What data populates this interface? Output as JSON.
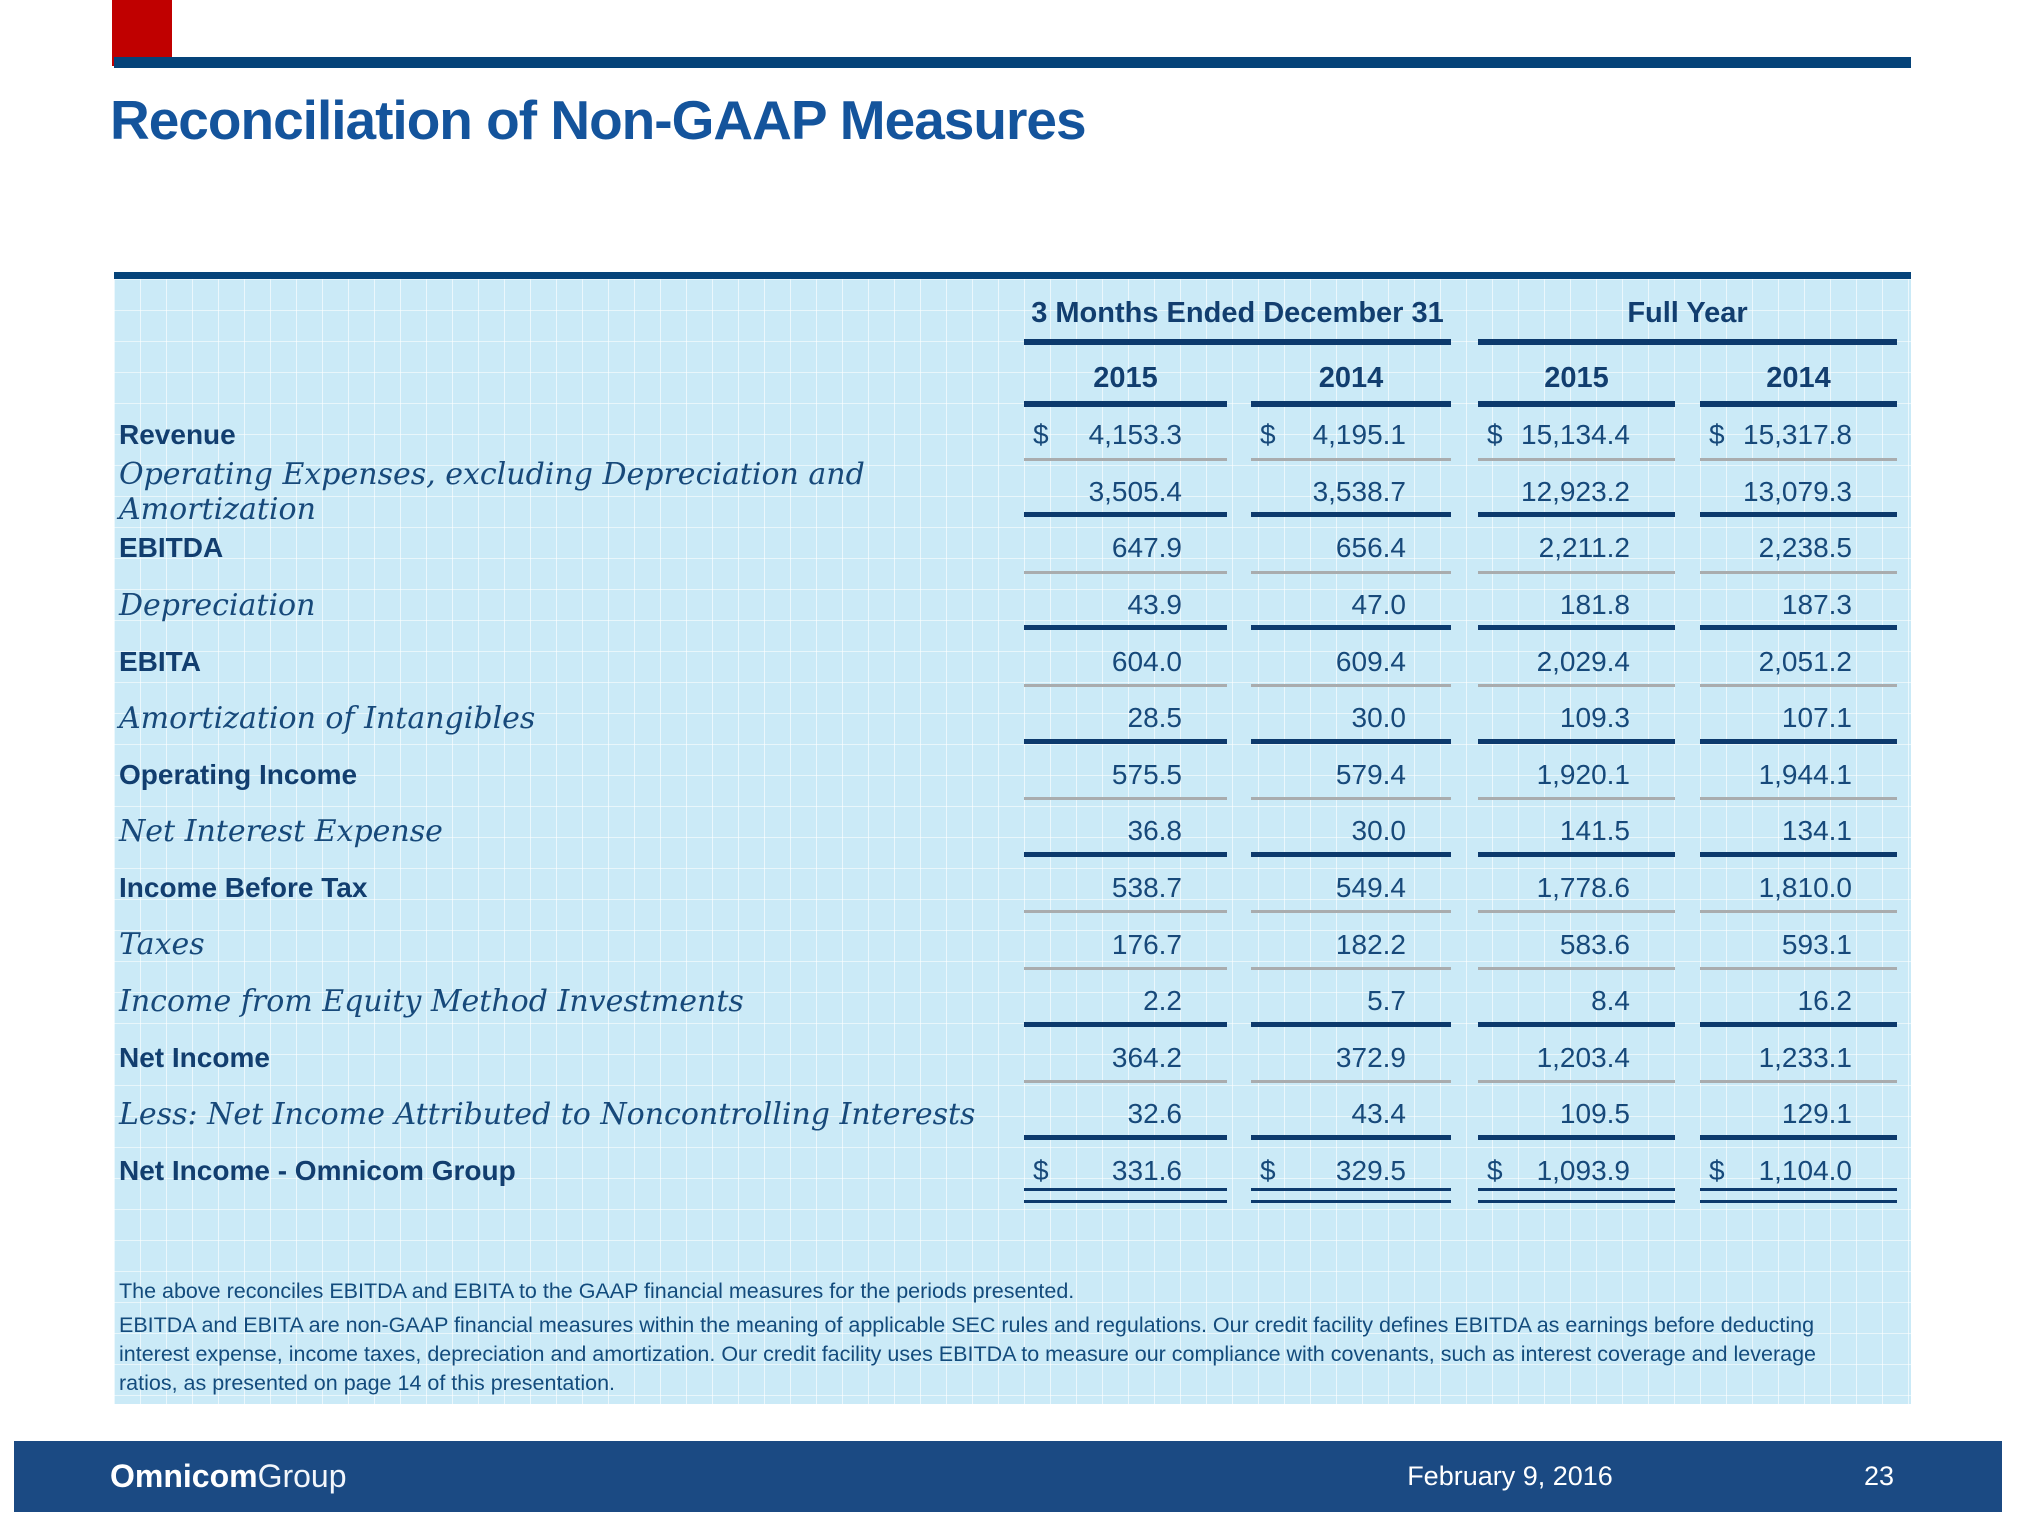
{
  "slide": {
    "title": "Reconciliation of Non-GAAP Measures",
    "accent_color": "#C00000",
    "rule_color": "#054379",
    "title_color": "#14549C",
    "table_bg_color": "#CBEAF7",
    "navy_line_color": "#0D3A6D",
    "gray_line_color": "#A9ACAE"
  },
  "table": {
    "col_groups": [
      {
        "label": "3 Months Ended December 31",
        "years": [
          "2015",
          "2014"
        ]
      },
      {
        "label": "Full Year",
        "years": [
          "2015",
          "2014"
        ]
      }
    ],
    "rows": [
      {
        "label": "Revenue",
        "style": "bold",
        "dollar": true,
        "values": [
          "4,153.3",
          "4,195.1",
          "15,134.4",
          "15,317.8"
        ],
        "sep": "gray"
      },
      {
        "label": "Operating Expenses, excluding Depreciation and Amortization",
        "style": "italic",
        "dollar": false,
        "values": [
          "3,505.4",
          "3,538.7",
          "12,923.2",
          "13,079.3"
        ],
        "sep": "navy"
      },
      {
        "label": "EBITDA",
        "style": "bold",
        "dollar": false,
        "values": [
          "647.9",
          "656.4",
          "2,211.2",
          "2,238.5"
        ],
        "sep": "gray"
      },
      {
        "label": "Depreciation",
        "style": "italic",
        "dollar": false,
        "values": [
          "43.9",
          "47.0",
          "181.8",
          "187.3"
        ],
        "sep": "navy"
      },
      {
        "label": "EBITA",
        "style": "bold",
        "dollar": false,
        "values": [
          "604.0",
          "609.4",
          "2,029.4",
          "2,051.2"
        ],
        "sep": "gray"
      },
      {
        "label": "Amortization of Intangibles",
        "style": "italic",
        "dollar": false,
        "values": [
          "28.5",
          "30.0",
          "109.3",
          "107.1"
        ],
        "sep": "navy"
      },
      {
        "label": "Operating Income",
        "style": "bold",
        "dollar": false,
        "values": [
          "575.5",
          "579.4",
          "1,920.1",
          "1,944.1"
        ],
        "sep": "gray"
      },
      {
        "label": "Net Interest Expense",
        "style": "italic",
        "dollar": false,
        "values": [
          "36.8",
          "30.0",
          "141.5",
          "134.1"
        ],
        "sep": "navy"
      },
      {
        "label": "Income Before Tax",
        "style": "bold",
        "dollar": false,
        "values": [
          "538.7",
          "549.4",
          "1,778.6",
          "1,810.0"
        ],
        "sep": "gray"
      },
      {
        "label": "Taxes",
        "style": "italic",
        "dollar": false,
        "values": [
          "176.7",
          "182.2",
          "583.6",
          "593.1"
        ],
        "sep": "gray"
      },
      {
        "label": "Income from Equity Method Investments",
        "style": "italic",
        "dollar": false,
        "values": [
          "2.2",
          "5.7",
          "8.4",
          "16.2"
        ],
        "sep": "navy"
      },
      {
        "label": "Net Income",
        "style": "bold",
        "dollar": false,
        "values": [
          "364.2",
          "372.9",
          "1,203.4",
          "1,233.1"
        ],
        "sep": "gray"
      },
      {
        "label": "Less: Net Income Attributed to Noncontrolling Interests",
        "style": "italic",
        "dollar": false,
        "values": [
          "32.6",
          "43.4",
          "109.5",
          "129.1"
        ],
        "sep": "navy"
      },
      {
        "label": "Net Income - Omnicom Group",
        "style": "bold",
        "dollar": true,
        "values": [
          "331.6",
          "329.5",
          "1,093.9",
          "1,104.0"
        ],
        "sep": "double"
      }
    ]
  },
  "notes": {
    "line1": "The above reconciles EBITDA and EBITA to the GAAP financial measures for the periods presented.",
    "para": "EBITDA and EBITA are non-GAAP financial measures within the meaning of applicable SEC rules and regulations.  Our credit facility defines EBITDA as earnings before deducting interest expense, income taxes, depreciation and amortization.  Our credit facility uses EBITDA to measure our compliance with covenants, such as interest coverage and leverage ratios, as presented on page 14 of this presentation."
  },
  "footer": {
    "logo_bold": "Omnicom",
    "logo_light": "Group",
    "date": "February 9, 2016",
    "page": "23"
  }
}
